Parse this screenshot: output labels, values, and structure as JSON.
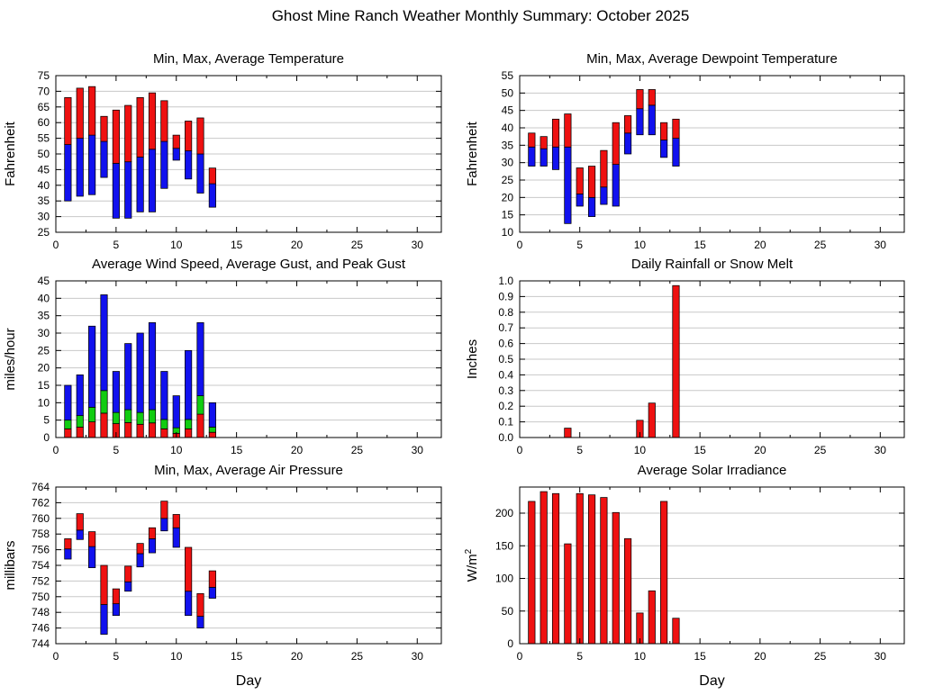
{
  "main_title": "Ghost Mine Ranch Weather Monthly Summary: October 2025",
  "colors": {
    "red": "#ee1111",
    "blue": "#1111ee",
    "green": "#11cc11",
    "grid": "#c8c8c8",
    "axis": "#000000",
    "background": "#ffffff"
  },
  "chart_data": [
    {
      "id": "temperature",
      "type": "range-bar",
      "title": "Min, Max, Average Temperature",
      "ylabel": "Fahrenheit",
      "xlabel": "",
      "ylim": [
        25,
        75
      ],
      "ytick_step": 5,
      "ytick_decimals": 0,
      "xlim": [
        0,
        32
      ],
      "xtick_step": 5,
      "xminor_step": 2.5,
      "x": [
        1,
        2,
        3,
        4,
        5,
        6,
        7,
        8,
        9,
        10,
        11,
        12,
        13
      ],
      "min": [
        35,
        36.5,
        37,
        42.5,
        29.5,
        29.5,
        31.5,
        31.5,
        39,
        48,
        42,
        37.5,
        33
      ],
      "avg": [
        53,
        55,
        56,
        54,
        47,
        47.5,
        49,
        51.5,
        54,
        51.8,
        51,
        50,
        40.5
      ],
      "max": [
        68,
        71,
        71.5,
        62,
        64,
        65.5,
        68,
        69.5,
        67,
        56,
        60.5,
        61.5,
        45.5
      ],
      "color_low": "#1111ee",
      "color_high": "#ee1111",
      "grid": true,
      "legend": "none"
    },
    {
      "id": "dewpoint",
      "type": "range-bar",
      "title": "Min, Max, Average Dewpoint Temperature",
      "ylabel": "Fahrenheit",
      "xlabel": "",
      "ylim": [
        10,
        55
      ],
      "ytick_step": 5,
      "ytick_decimals": 0,
      "xlim": [
        0,
        32
      ],
      "xtick_step": 5,
      "xminor_step": 2.5,
      "x": [
        1,
        2,
        3,
        4,
        5,
        6,
        7,
        8,
        9,
        10,
        11,
        12,
        13
      ],
      "min": [
        29,
        29,
        28,
        12.5,
        17.5,
        14.5,
        18,
        17.5,
        32.5,
        38,
        38,
        31.5,
        29
      ],
      "avg": [
        34.5,
        34,
        34.5,
        34.5,
        21,
        20,
        23,
        29.5,
        38.5,
        45.5,
        46.5,
        36.5,
        37
      ],
      "max": [
        38.5,
        37.5,
        42.5,
        44,
        28.5,
        29,
        33.5,
        41.5,
        43.5,
        51,
        51,
        41.5,
        42.5
      ],
      "color_low": "#1111ee",
      "color_high": "#ee1111",
      "grid": true,
      "legend": "none"
    },
    {
      "id": "wind",
      "type": "stacked-bar",
      "title": "Average Wind Speed, Average Gust, and Peak Gust",
      "ylabel": "miles/hour",
      "xlabel": "",
      "ylim": [
        0,
        45
      ],
      "ytick_step": 5,
      "ytick_decimals": 0,
      "xlim": [
        0,
        32
      ],
      "xtick_step": 5,
      "xminor_step": 2.5,
      "x": [
        1,
        2,
        3,
        4,
        5,
        6,
        7,
        8,
        9,
        10,
        11,
        12,
        13
      ],
      "series": [
        {
          "name": "Average Wind Speed",
          "color": "#ee1111",
          "values": [
            2.5,
            3,
            4.5,
            7,
            4,
            4.3,
            3.8,
            4.2,
            2.5,
            1.2,
            2.5,
            6.7,
            1.5
          ]
        },
        {
          "name": "Average Gust",
          "color": "#11cc11",
          "values": [
            5,
            6.3,
            8.7,
            13.5,
            7.2,
            8,
            7.2,
            8,
            5.2,
            2.8,
            5.2,
            12,
            3
          ]
        },
        {
          "name": "Peak Gust",
          "color": "#1111ee",
          "values": [
            15,
            18,
            32,
            41,
            19,
            27,
            30,
            33,
            19,
            12,
            25,
            33,
            10
          ]
        }
      ],
      "series_values_are": "cumulative-tops",
      "grid": true,
      "legend": "none"
    },
    {
      "id": "rainfall",
      "type": "bar",
      "title": "Daily Rainfall or Snow Melt",
      "ylabel": "Inches",
      "xlabel": "",
      "ylim": [
        0,
        1.0
      ],
      "ytick_step": 0.1,
      "ytick_decimals": 1,
      "xlim": [
        0,
        32
      ],
      "xtick_step": 5,
      "xminor_step": 2.5,
      "x": [
        1,
        2,
        3,
        4,
        5,
        6,
        7,
        8,
        9,
        10,
        11,
        12,
        13
      ],
      "values": [
        0,
        0,
        0,
        0.06,
        0,
        0,
        0,
        0,
        0,
        0.11,
        0.22,
        0,
        0.97
      ],
      "color": "#ee1111",
      "grid": true,
      "legend": "none"
    },
    {
      "id": "pressure",
      "type": "range-bar",
      "title": "Min, Max, Average Air Pressure",
      "ylabel": "millibars",
      "xlabel": "Day",
      "ylim": [
        744,
        764
      ],
      "ytick_step": 2,
      "ytick_decimals": 0,
      "xlim": [
        0,
        32
      ],
      "xtick_step": 5,
      "xminor_step": 2.5,
      "x": [
        1,
        2,
        3,
        4,
        5,
        6,
        7,
        8,
        9,
        10,
        11,
        12,
        13
      ],
      "min": [
        754.8,
        757.3,
        753.7,
        745.2,
        747.6,
        750.7,
        753.8,
        755.6,
        758.4,
        756.3,
        747.6,
        746.0,
        749.8
      ],
      "avg": [
        756.1,
        758.5,
        756.4,
        749.0,
        749.1,
        751.9,
        755.5,
        757.4,
        760.0,
        758.8,
        750.7,
        747.5,
        751.2
      ],
      "max": [
        757.4,
        760.6,
        758.3,
        754.0,
        751.0,
        753.9,
        756.8,
        758.8,
        762.2,
        760.5,
        756.3,
        750.4,
        753.3
      ],
      "color_low": "#1111ee",
      "color_high": "#ee1111",
      "grid": true,
      "legend": "none"
    },
    {
      "id": "solar",
      "type": "bar",
      "title": "Average Solar Irradiance",
      "ylabel": "W/m",
      "ylabel_sup": "2",
      "xlabel": "Day",
      "ylim": [
        0,
        240
      ],
      "ytick_step": 50,
      "ytick_decimals": 0,
      "xlim": [
        0,
        32
      ],
      "xtick_step": 5,
      "xminor_step": 2.5,
      "x": [
        1,
        2,
        3,
        4,
        5,
        6,
        7,
        8,
        9,
        10,
        11,
        12,
        13
      ],
      "values": [
        218,
        233,
        230,
        153,
        230,
        228,
        224,
        201,
        161,
        47,
        81,
        218,
        39
      ],
      "color": "#ee1111",
      "grid": true,
      "legend": "none"
    }
  ]
}
